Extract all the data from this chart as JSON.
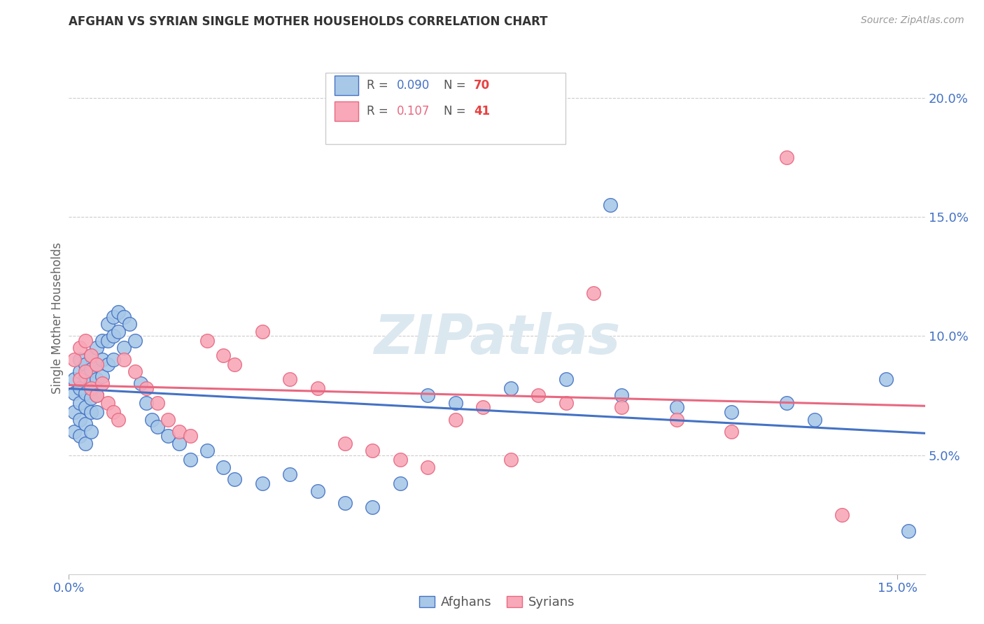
{
  "title": "AFGHAN VS SYRIAN SINGLE MOTHER HOUSEHOLDS CORRELATION CHART",
  "source": "Source: ZipAtlas.com",
  "ylabel": "Single Mother Households",
  "xlim": [
    0.0,
    0.155
  ],
  "ylim": [
    0.0,
    0.215
  ],
  "xticks": [
    0.0,
    0.15
  ],
  "xticklabels": [
    "0.0%",
    "15.0%"
  ],
  "yticks": [
    0.05,
    0.1,
    0.15,
    0.2
  ],
  "yticklabels": [
    "5.0%",
    "10.0%",
    "15.0%",
    "20.0%"
  ],
  "afghan_R": 0.09,
  "afghan_N": 70,
  "syrian_R": 0.107,
  "syrian_N": 41,
  "afghan_color": "#a8c8e8",
  "syrian_color": "#f8a8b8",
  "afghan_line_color": "#4472c4",
  "syrian_line_color": "#e86880",
  "watermark_color": "#dce8f0",
  "legend_R_color": "#4472c4",
  "legend_N_color": "#e84040",
  "afghan_x": [
    0.001,
    0.001,
    0.001,
    0.001,
    0.002,
    0.002,
    0.002,
    0.002,
    0.002,
    0.002,
    0.003,
    0.003,
    0.003,
    0.003,
    0.003,
    0.003,
    0.004,
    0.004,
    0.004,
    0.004,
    0.004,
    0.004,
    0.005,
    0.005,
    0.005,
    0.005,
    0.005,
    0.006,
    0.006,
    0.006,
    0.007,
    0.007,
    0.007,
    0.008,
    0.008,
    0.008,
    0.009,
    0.009,
    0.01,
    0.01,
    0.011,
    0.012,
    0.013,
    0.014,
    0.015,
    0.016,
    0.018,
    0.02,
    0.022,
    0.025,
    0.028,
    0.03,
    0.035,
    0.04,
    0.045,
    0.05,
    0.055,
    0.06,
    0.065,
    0.07,
    0.08,
    0.09,
    0.1,
    0.098,
    0.11,
    0.12,
    0.13,
    0.135,
    0.148,
    0.152
  ],
  "afghan_y": [
    0.082,
    0.076,
    0.068,
    0.06,
    0.09,
    0.085,
    0.078,
    0.072,
    0.065,
    0.058,
    0.088,
    0.083,
    0.076,
    0.07,
    0.063,
    0.055,
    0.092,
    0.086,
    0.08,
    0.074,
    0.068,
    0.06,
    0.095,
    0.088,
    0.082,
    0.075,
    0.068,
    0.098,
    0.09,
    0.083,
    0.105,
    0.098,
    0.088,
    0.108,
    0.1,
    0.09,
    0.11,
    0.102,
    0.108,
    0.095,
    0.105,
    0.098,
    0.08,
    0.072,
    0.065,
    0.062,
    0.058,
    0.055,
    0.048,
    0.052,
    0.045,
    0.04,
    0.038,
    0.042,
    0.035,
    0.03,
    0.028,
    0.038,
    0.075,
    0.072,
    0.078,
    0.082,
    0.075,
    0.155,
    0.07,
    0.068,
    0.072,
    0.065,
    0.082,
    0.018
  ],
  "syrian_x": [
    0.001,
    0.002,
    0.002,
    0.003,
    0.003,
    0.004,
    0.004,
    0.005,
    0.005,
    0.006,
    0.007,
    0.008,
    0.009,
    0.01,
    0.012,
    0.014,
    0.016,
    0.018,
    0.02,
    0.022,
    0.025,
    0.028,
    0.03,
    0.035,
    0.04,
    0.045,
    0.05,
    0.055,
    0.06,
    0.065,
    0.07,
    0.075,
    0.08,
    0.085,
    0.09,
    0.095,
    0.1,
    0.11,
    0.12,
    0.13,
    0.14
  ],
  "syrian_y": [
    0.09,
    0.095,
    0.082,
    0.098,
    0.085,
    0.092,
    0.078,
    0.088,
    0.075,
    0.08,
    0.072,
    0.068,
    0.065,
    0.09,
    0.085,
    0.078,
    0.072,
    0.065,
    0.06,
    0.058,
    0.098,
    0.092,
    0.088,
    0.102,
    0.082,
    0.078,
    0.055,
    0.052,
    0.048,
    0.045,
    0.065,
    0.07,
    0.048,
    0.075,
    0.072,
    0.118,
    0.07,
    0.065,
    0.06,
    0.175,
    0.025
  ]
}
